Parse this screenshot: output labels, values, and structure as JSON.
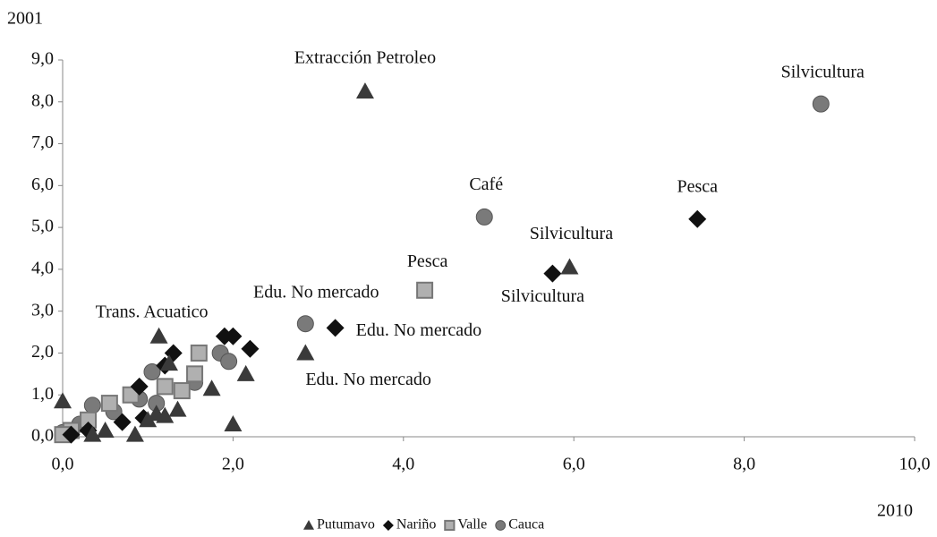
{
  "chart_data": {
    "type": "scatter",
    "y_label": "2001",
    "x_label": "2010",
    "xlim": [
      0,
      10
    ],
    "ylim": [
      0,
      9
    ],
    "xticks": [
      {
        "value": 0,
        "label": "0,0"
      },
      {
        "value": 2,
        "label": "2,0"
      },
      {
        "value": 4,
        "label": "4,0"
      },
      {
        "value": 6,
        "label": "6,0"
      },
      {
        "value": 8,
        "label": "8,0"
      },
      {
        "value": 10,
        "label": "10,0"
      }
    ],
    "yticks": [
      {
        "value": 0,
        "label": "0,0"
      },
      {
        "value": 1,
        "label": "1,0"
      },
      {
        "value": 2,
        "label": "2,0"
      },
      {
        "value": 3,
        "label": "3,0"
      },
      {
        "value": 4,
        "label": "4,0"
      },
      {
        "value": 5,
        "label": "5,0"
      },
      {
        "value": 6,
        "label": "6,0"
      },
      {
        "value": 7,
        "label": "7,0"
      },
      {
        "value": 8,
        "label": "8,0"
      },
      {
        "value": 9,
        "label": "9,0"
      }
    ],
    "legend": "bottom",
    "series": [
      {
        "name": "Putumavo",
        "marker": "triangle",
        "color": "#3a3a3a",
        "x": [
          3.55,
          5.95,
          2.85,
          1.13,
          2.0,
          2.15,
          1.75,
          1.35,
          1.2,
          0.85,
          0.0,
          0.35,
          0.5,
          1.0,
          1.1,
          1.25
        ],
        "y": [
          8.25,
          4.05,
          2.0,
          2.4,
          0.3,
          1.5,
          1.15,
          0.65,
          0.5,
          0.05,
          0.85,
          0.05,
          0.15,
          0.4,
          0.55,
          1.75
        ],
        "labels": [
          "Extracción  Petroleo",
          "Silvicultura",
          "Edu. No mercado",
          "Trans. Acuatico",
          null,
          null,
          null,
          null,
          null,
          null,
          null,
          null,
          null,
          null,
          null,
          null
        ]
      },
      {
        "name": "Nariño",
        "marker": "diamond",
        "color": "#111111",
        "x": [
          7.45,
          5.75,
          3.2,
          2.0,
          1.9,
          1.3,
          2.2,
          1.2,
          0.95,
          0.7,
          0.9,
          0.3,
          0.1
        ],
        "y": [
          5.2,
          3.9,
          2.6,
          2.4,
          2.4,
          2.0,
          2.1,
          1.7,
          0.45,
          0.35,
          1.2,
          0.15,
          0.05
        ],
        "labels": [
          "Pesca",
          "Silvicultura",
          "Edu. No mercado",
          null,
          null,
          null,
          null,
          null,
          null,
          null,
          null,
          null,
          null
        ]
      },
      {
        "name": "Valle",
        "marker": "square",
        "color": "#b0b0b0",
        "x": [
          4.25,
          1.6,
          1.4,
          1.2,
          0.8,
          0.55,
          0.3,
          0.1,
          0.0,
          1.55
        ],
        "y": [
          3.5,
          2.0,
          1.1,
          1.2,
          1.0,
          0.8,
          0.4,
          0.15,
          0.05,
          1.5
        ],
        "labels": [
          "Pesca",
          null,
          null,
          null,
          null,
          null,
          null,
          null,
          null,
          null
        ]
      },
      {
        "name": "Cauca",
        "marker": "circle",
        "color": "#7a7a7a",
        "x": [
          8.9,
          4.95,
          2.85,
          1.85,
          1.95,
          1.05,
          1.55,
          0.9,
          0.6,
          0.35,
          0.2,
          0.0,
          1.1
        ],
        "y": [
          7.95,
          5.25,
          2.7,
          2.0,
          1.8,
          1.55,
          1.3,
          0.9,
          0.6,
          0.75,
          0.3,
          0.1,
          0.8
        ],
        "labels": [
          "Silvicultura",
          "Café",
          "Edu. No mercado",
          null,
          null,
          null,
          null,
          null,
          null,
          null,
          null,
          null,
          null
        ]
      }
    ]
  }
}
